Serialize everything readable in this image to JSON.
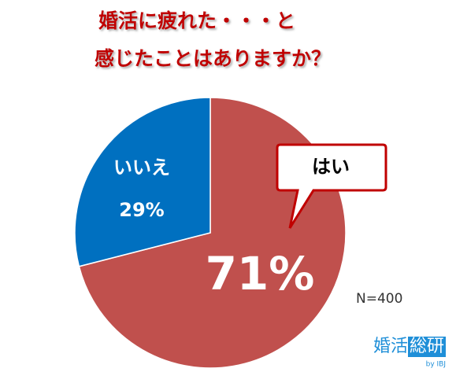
{
  "chart_data": {
    "type": "pie",
    "title": [
      "婚活に疲れた・・・と",
      "感じたことはありますか？"
    ],
    "categories": [
      "はい",
      "いいえ"
    ],
    "values": [
      71,
      29
    ],
    "value_labels": [
      "71%",
      "29%"
    ],
    "colors": [
      "#c0504d",
      "#0070c0"
    ],
    "start": "top",
    "direction": "clockwise",
    "annotation": "N=400"
  },
  "logo": {
    "main": "婚活",
    "boxed": "総研",
    "by": "by IBJ"
  }
}
